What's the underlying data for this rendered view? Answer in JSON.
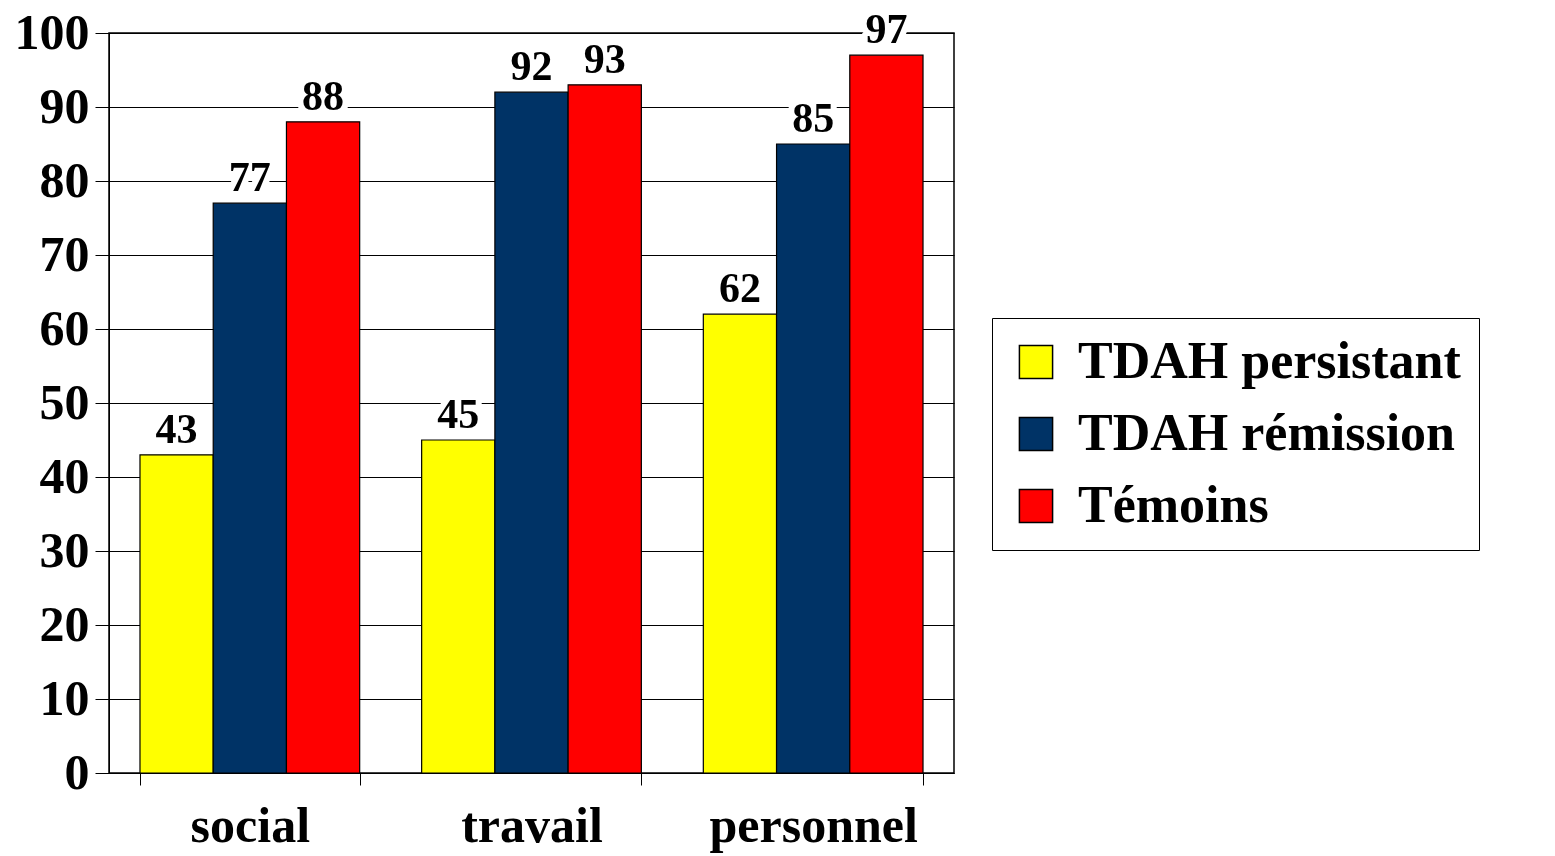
{
  "chart_data": {
    "type": "bar",
    "categories": [
      "social",
      "travail",
      "personnel"
    ],
    "series": [
      {
        "name": "TDAH persistant",
        "color": "#ffff00",
        "values": [
          43,
          45,
          62
        ]
      },
      {
        "name": "TDAH rémission",
        "color": "#003366",
        "values": [
          77,
          92,
          85
        ]
      },
      {
        "name": "Témoins",
        "color": "#ff0000",
        "values": [
          88,
          93,
          97
        ]
      }
    ],
    "ylim": [
      0,
      100
    ],
    "yticks": [
      0,
      10,
      20,
      30,
      40,
      50,
      60,
      70,
      80,
      90,
      100
    ],
    "grid": "y",
    "legend": "right",
    "data_labels": true
  }
}
